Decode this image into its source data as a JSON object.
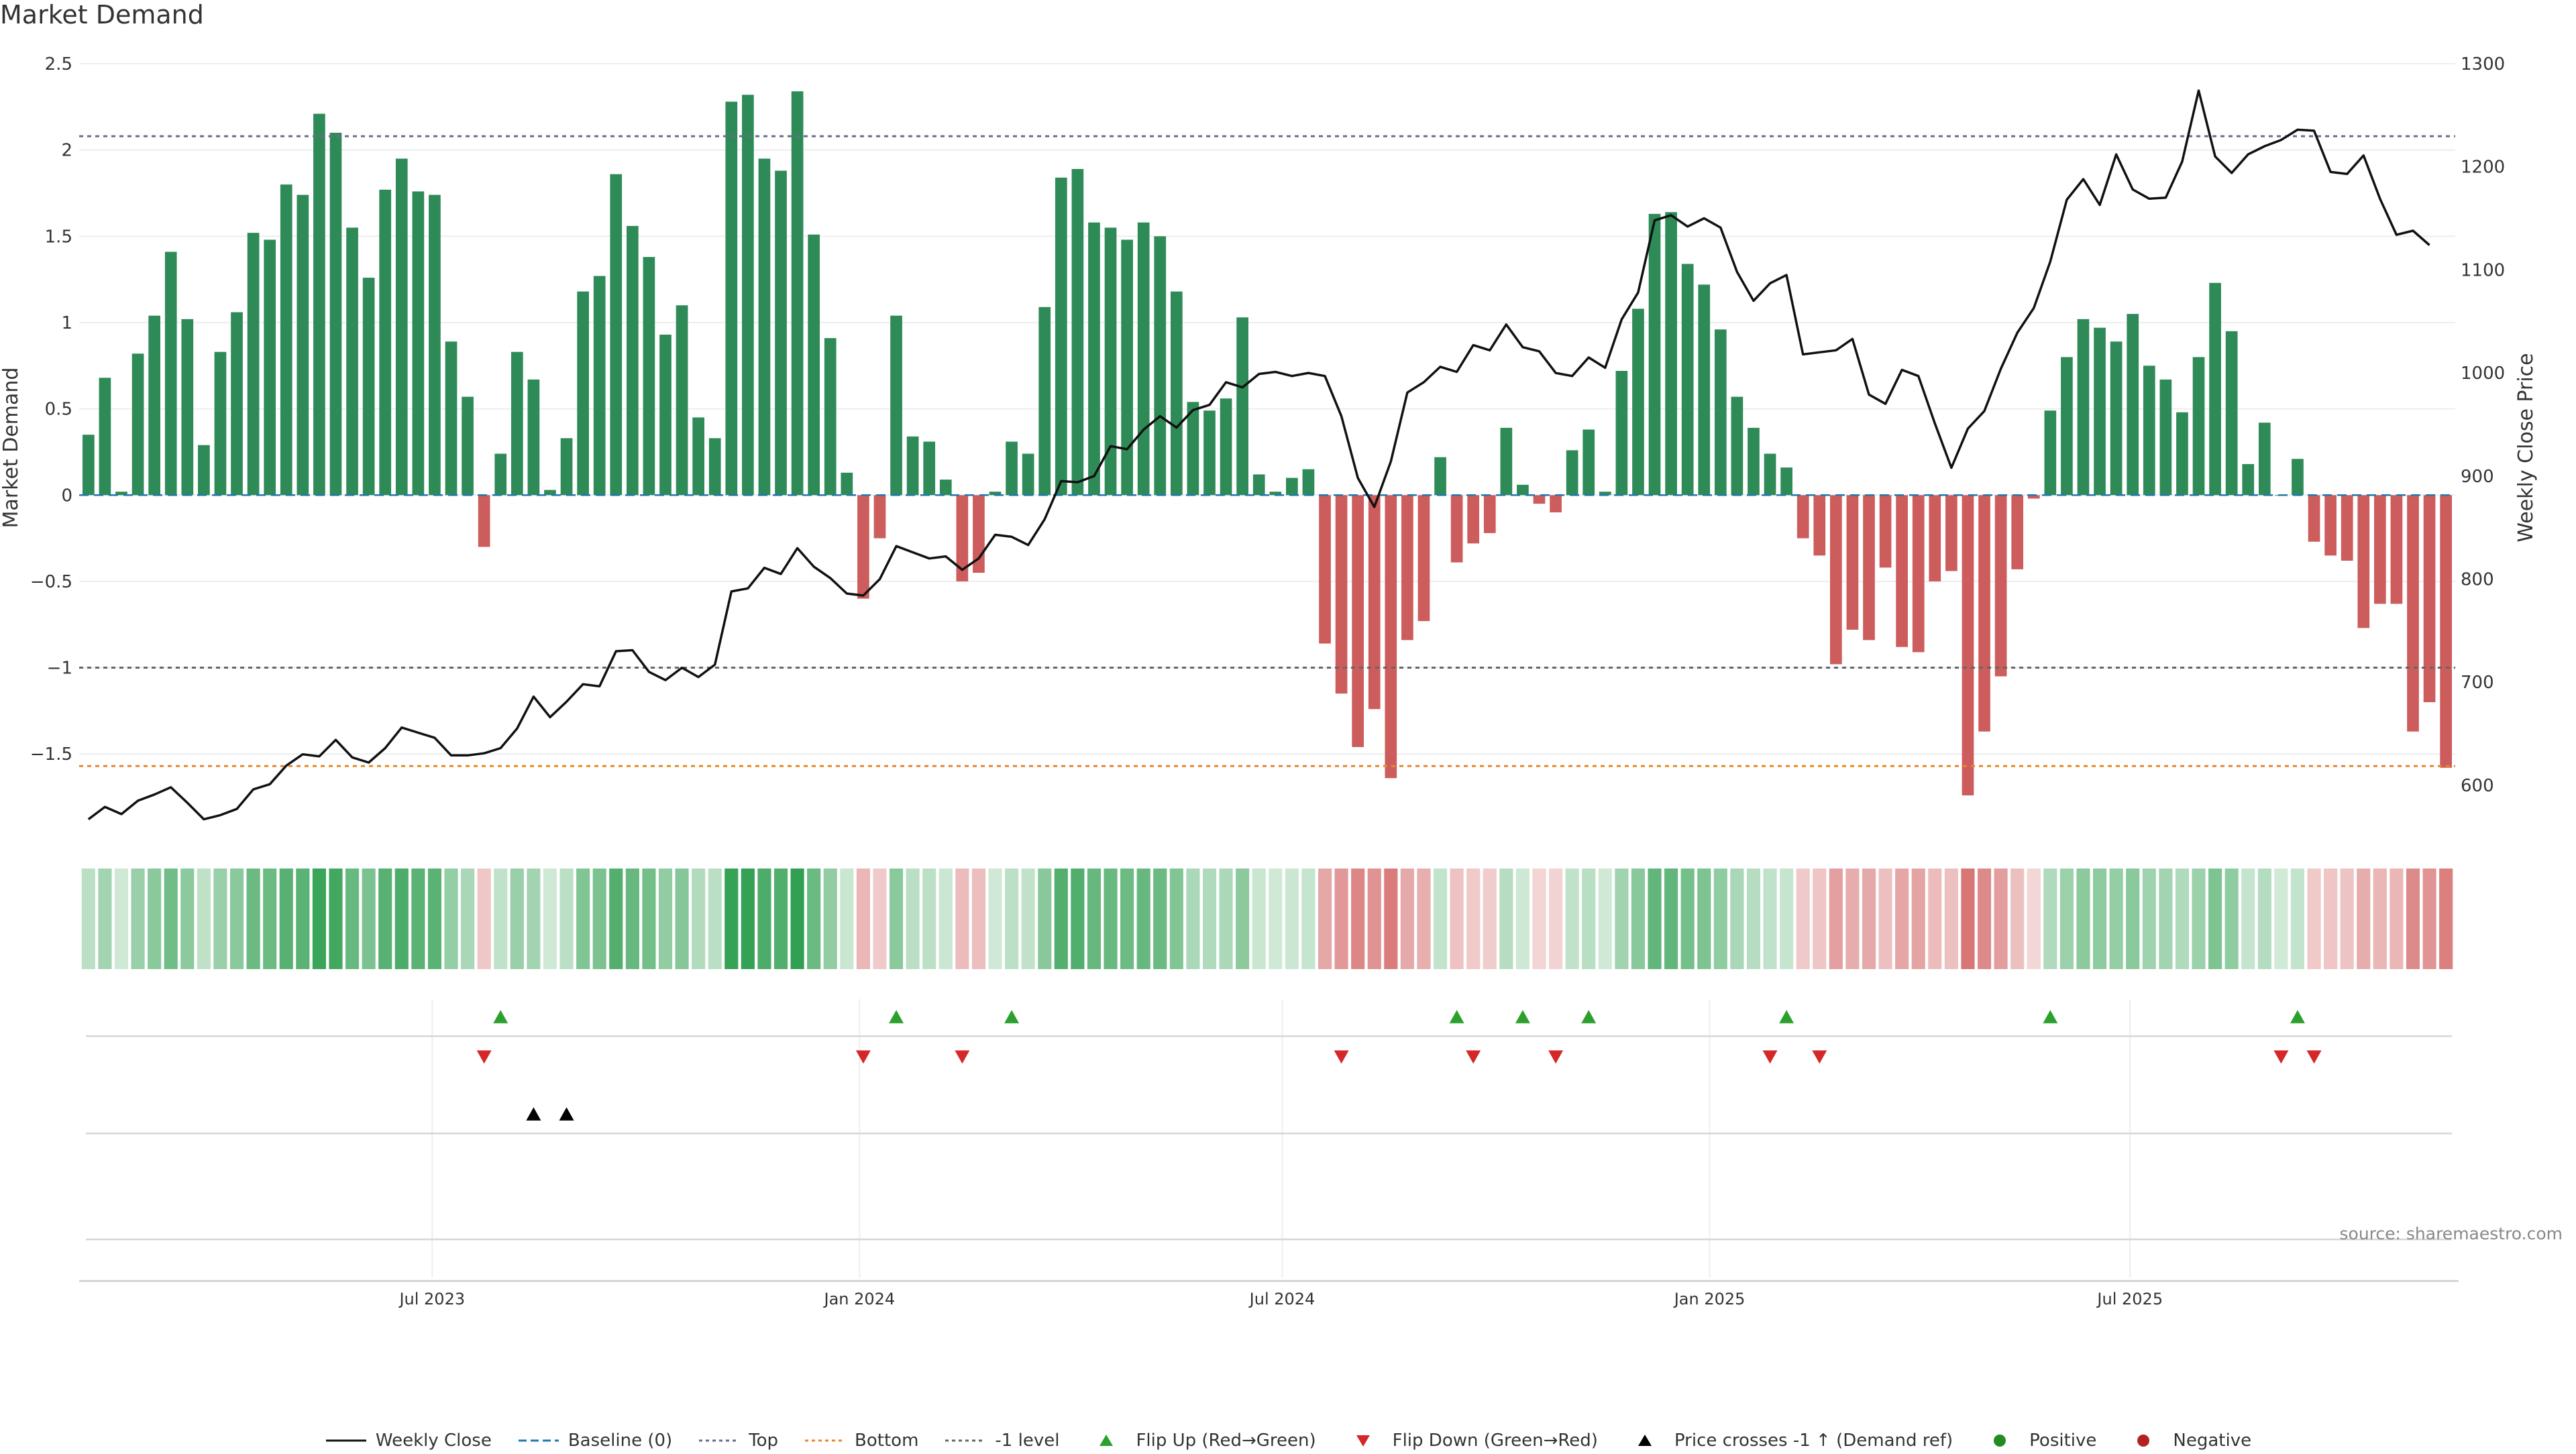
{
  "chart_data": {
    "type": "bar",
    "title": "Market Demand",
    "ylabel": "Market Demand",
    "y2label": "Weekly Close Price",
    "ylim": [
      -1.95,
      2.5
    ],
    "y2lim": [
      555,
      1300
    ],
    "yticks": [
      2.5,
      2,
      1.5,
      1,
      0.5,
      0,
      -0.5,
      -1,
      -1.5
    ],
    "ytick_labels": [
      "2.5",
      "2",
      "1.5",
      "1",
      "0.5",
      "0",
      "−0.5",
      "−1",
      "−1.5"
    ],
    "y2ticks": [
      1300,
      1200,
      1100,
      1000,
      900,
      800,
      700,
      600
    ],
    "y2tick_labels": [
      "1300",
      "1200",
      "1100",
      "1000",
      "900",
      "800",
      "700",
      "600"
    ],
    "x_start": "2023-02-03",
    "x_end": "2025-11-14",
    "x_range": [
      "2023-01-30",
      "2025-11-18"
    ],
    "xticks": [
      {
        "date": "2023-07-01",
        "label": "Jul 2023"
      },
      {
        "date": "2024-01-01",
        "label": "Jan 2024"
      },
      {
        "date": "2024-07-01",
        "label": "Jul 2024"
      },
      {
        "date": "2025-01-01",
        "label": "Jan 2025"
      },
      {
        "date": "2025-07-01",
        "label": "Jul 2025"
      }
    ],
    "reference_lines": [
      {
        "name": "Top",
        "value": 2.08,
        "color": "#6b6b8f"
      },
      {
        "name": "-1 level",
        "value": -1.0,
        "color": "#666666"
      },
      {
        "name": "Bottom",
        "value": -1.57,
        "color": "#e8862a"
      }
    ],
    "series": [
      {
        "name": "Market Demand",
        "kind": "bar",
        "positive_color": "#2e8b57",
        "negative_color": "#cd5c5c",
        "values": [
          0.35,
          0.68,
          0.02,
          0.82,
          1.04,
          1.41,
          1.02,
          0.29,
          0.83,
          1.06,
          1.52,
          1.48,
          1.8,
          1.74,
          2.21,
          2.1,
          1.55,
          1.26,
          1.77,
          1.95,
          1.76,
          1.74,
          0.89,
          0.57,
          -0.3,
          0.24,
          0.83,
          0.67,
          0.03,
          0.33,
          1.18,
          1.27,
          1.86,
          1.56,
          1.38,
          0.93,
          1.1,
          0.45,
          0.33,
          2.28,
          2.32,
          1.95,
          1.88,
          2.34,
          1.51,
          0.91,
          0.13,
          -0.6,
          -0.25,
          1.04,
          0.34,
          0.31,
          0.09,
          -0.5,
          -0.45,
          0.02,
          0.31,
          0.24,
          1.09,
          1.84,
          1.89,
          1.58,
          1.55,
          1.48,
          1.58,
          1.5,
          1.18,
          0.54,
          0.49,
          0.56,
          1.03,
          0.12,
          0.02,
          0.1,
          0.15,
          -0.86,
          -1.15,
          -1.46,
          -1.24,
          -1.64,
          -0.84,
          -0.73,
          0.22,
          -0.39,
          -0.28,
          -0.22,
          0.39,
          0.06,
          -0.05,
          -0.1,
          0.26,
          0.38,
          0.02,
          0.72,
          1.08,
          1.63,
          1.64,
          1.34,
          1.22,
          0.96,
          0.57,
          0.39,
          0.24,
          0.16,
          -0.25,
          -0.35,
          -0.98,
          -0.78,
          -0.84,
          -0.42,
          -0.88,
          -0.91,
          -0.5,
          -0.44,
          -1.74,
          -1.37,
          -1.05,
          -0.43,
          -0.02,
          0.49,
          0.8,
          1.02,
          0.97,
          0.89,
          1.05,
          0.75,
          0.67,
          0.48,
          0.8,
          1.23,
          0.95,
          0.18,
          0.42,
          0.0,
          0.21,
          -0.27,
          -0.35,
          -0.38,
          -0.77,
          -0.63,
          -0.63,
          -1.37,
          -1.2,
          -1.58
        ]
      },
      {
        "name": "Weekly Close",
        "kind": "line",
        "axis": "right",
        "color": "#111111",
        "values": [
          567,
          579,
          572,
          585,
          591,
          598,
          583,
          567,
          571,
          577,
          596,
          601,
          619,
          630,
          628,
          644,
          627,
          622,
          636,
          656,
          651,
          646,
          629,
          629,
          631,
          636,
          655,
          686,
          666,
          681,
          698,
          696,
          730,
          731,
          710,
          702,
          714,
          705,
          717,
          788,
          791,
          811,
          805,
          830,
          812,
          801,
          786,
          784,
          800,
          832,
          826,
          820,
          822,
          809,
          820,
          843,
          841,
          833,
          858,
          895,
          894,
          900,
          929,
          926,
          945,
          958,
          947,
          964,
          969,
          991,
          986,
          999,
          1001,
          997,
          1000,
          997,
          958,
          898,
          870,
          914,
          981,
          991,
          1006,
          1001,
          1027,
          1022,
          1047,
          1025,
          1021,
          1000,
          997,
          1015,
          1005,
          1052,
          1078,
          1148,
          1153,
          1142,
          1150,
          1141,
          1098,
          1070,
          1087,
          1095,
          1018,
          1020,
          1022,
          1033,
          979,
          970,
          1003,
          997,
          951,
          908,
          946,
          963,
          1004,
          1039,
          1063,
          1108,
          1168,
          1188,
          1163,
          1212,
          1178,
          1169,
          1170,
          1205,
          1274,
          1210,
          1194,
          1212,
          1220,
          1226,
          1236,
          1235,
          1195,
          1193,
          1211,
          1169,
          1134,
          1138,
          1124
        ]
      }
    ],
    "heatmap_strip": {
      "description_colors": [
        "#2e9e4f",
        "#d9534f"
      ],
      "values_from": "Market Demand"
    },
    "event_rows": [
      {
        "name": "Flip Up (Red→Green)",
        "symbol": "triangle-up",
        "color": "#2ca02c",
        "indices": [
          25,
          49,
          56,
          83,
          87,
          91,
          103,
          119,
          134
        ]
      },
      {
        "name": "Flip Down (Green→Red)",
        "symbol": "triangle-down",
        "color": "#d62728",
        "indices": [
          24,
          47,
          53,
          76,
          84,
          89,
          102,
          105,
          133,
          135
        ]
      },
      {
        "name": "Price crosses -1 ↑ (Demand ref)",
        "symbol": "triangle-up",
        "color": "#000000",
        "indices": [
          27,
          29
        ]
      },
      {
        "name": "Positive",
        "symbol": "circle",
        "color": "#228b22",
        "indices": []
      },
      {
        "name": "Negative",
        "symbol": "circle",
        "color": "#b22222",
        "indices": []
      }
    ]
  },
  "source_text": "source: sharemaestro.com",
  "legend": [
    {
      "label": "Weekly Close",
      "symbol": "line-solid",
      "color": "#111111"
    },
    {
      "label": "Baseline (0)",
      "symbol": "line-dashed",
      "color": "#1f77b4"
    },
    {
      "label": "Top",
      "symbol": "line-dotted",
      "color": "#6b6b8f"
    },
    {
      "label": "Bottom",
      "symbol": "line-dotted",
      "color": "#e8862a"
    },
    {
      "label": "-1 level",
      "symbol": "line-dotted",
      "color": "#666666"
    },
    {
      "label": "Flip Up (Red→Green)",
      "symbol": "triangle-up",
      "color": "#2ca02c"
    },
    {
      "label": "Flip Down (Green→Red)",
      "symbol": "triangle-down",
      "color": "#d62728"
    },
    {
      "label": "Price crosses -1 ↑ (Demand ref)",
      "symbol": "triangle-up",
      "color": "#000000"
    },
    {
      "label": "Positive",
      "symbol": "circle",
      "color": "#228b22"
    },
    {
      "label": "Negative",
      "symbol": "circle",
      "color": "#b22222"
    }
  ]
}
